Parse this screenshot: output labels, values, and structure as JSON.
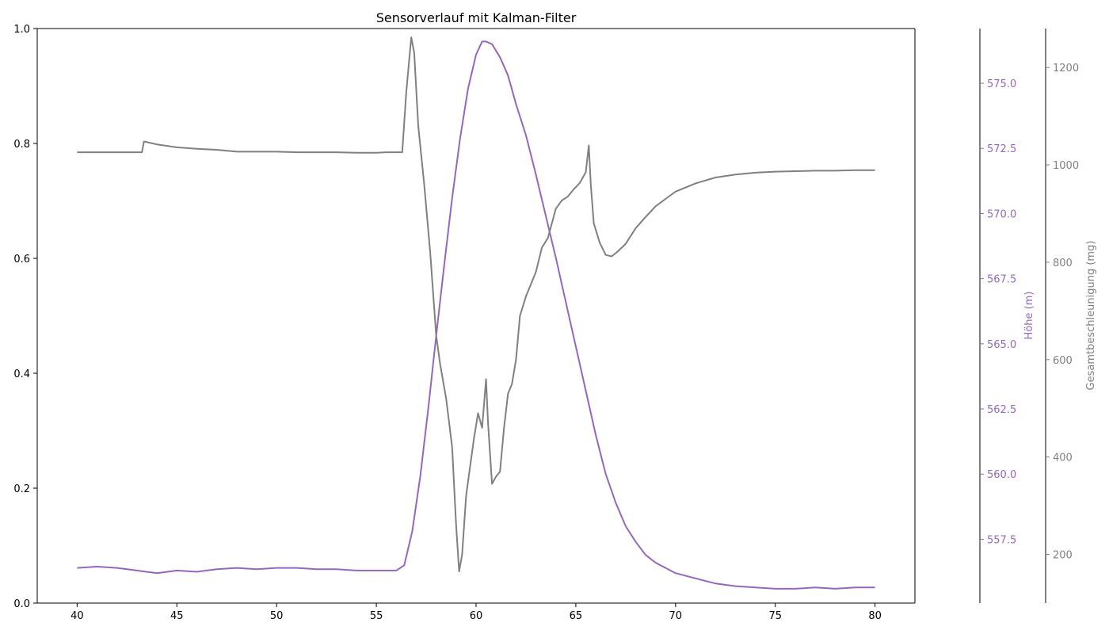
{
  "chart_data": {
    "type": "line",
    "title": "Sensorverlauf mit Kalman-Filter",
    "xlabel": "",
    "ylabel": "",
    "xlim": [
      38,
      82
    ],
    "ylim": [
      0,
      1
    ],
    "xticks": [
      "40",
      "45",
      "50",
      "55",
      "60",
      "65",
      "70",
      "75",
      "80"
    ],
    "yticks": [
      "0.0",
      "0.2",
      "0.4",
      "0.6",
      "0.8",
      "1.0"
    ],
    "grid": false,
    "legend": "none",
    "axes": [
      {
        "id": "hoehe",
        "position": "right",
        "label": "Höhe (m)",
        "color": "#9467bd",
        "ylim": [
          555.05,
          577.1
        ],
        "ticks": [
          "557.5",
          "560.0",
          "562.5",
          "565.0",
          "567.5",
          "570.0",
          "572.5",
          "575.0"
        ]
      },
      {
        "id": "beschleunigung",
        "position": "right-outer",
        "label": "Gesamtbeschleunigung (mg)",
        "color": "#808080",
        "ylim": [
          100,
          1280
        ],
        "ticks": [
          "200",
          "400",
          "600",
          "800",
          "1000",
          "1200"
        ]
      }
    ],
    "series": [
      {
        "axis": "hoehe",
        "color": "#9467bd",
        "x": [
          40,
          41,
          42,
          43,
          44,
          45,
          46,
          47,
          48,
          49,
          50,
          51,
          52,
          53,
          54,
          55,
          56,
          56.4,
          56.8,
          57.2,
          57.6,
          58,
          58.4,
          58.8,
          59.2,
          59.6,
          60,
          60.3,
          60.5,
          60.8,
          61.2,
          61.6,
          62,
          62.5,
          63,
          63.5,
          64,
          64.5,
          65,
          65.5,
          66,
          66.5,
          67,
          67.5,
          68,
          68.5,
          69,
          69.5,
          70,
          71,
          72,
          73,
          74,
          75,
          76,
          77,
          78,
          79,
          80
        ],
        "y": [
          556.4,
          556.45,
          556.4,
          556.3,
          556.2,
          556.3,
          556.25,
          556.35,
          556.4,
          556.35,
          556.4,
          556.4,
          556.35,
          556.35,
          556.3,
          556.3,
          556.3,
          556.5,
          557.8,
          559.9,
          562.5,
          565.3,
          568.0,
          570.6,
          572.9,
          574.8,
          576.1,
          576.6,
          576.6,
          576.5,
          576.0,
          575.3,
          574.2,
          573.0,
          571.5,
          569.9,
          568.3,
          566.6,
          564.9,
          563.2,
          561.5,
          560.0,
          558.9,
          558.0,
          557.4,
          556.9,
          556.6,
          556.4,
          556.2,
          556.0,
          555.8,
          555.7,
          555.65,
          555.6,
          555.6,
          555.65,
          555.6,
          555.65,
          555.65
        ]
      },
      {
        "axis": "beschleunigung",
        "color": "#808080",
        "x": [
          40,
          41,
          42,
          43,
          43.25,
          43.35,
          44,
          45,
          46,
          47,
          48,
          49,
          50,
          51,
          52,
          53,
          54,
          55,
          55.5,
          56,
          56.3,
          56.5,
          56.75,
          56.9,
          57.1,
          57.4,
          57.7,
          58,
          58.2,
          58.5,
          58.8,
          59.0,
          59.15,
          59.3,
          59.5,
          59.7,
          59.9,
          60.1,
          60.3,
          60.5,
          60.6,
          60.8,
          61.0,
          61.2,
          61.4,
          61.6,
          61.8,
          62.0,
          62.2,
          62.5,
          62.8,
          63.0,
          63.3,
          63.6,
          64.0,
          64.3,
          64.6,
          64.9,
          65.2,
          65.5,
          65.65,
          65.75,
          65.9,
          66.2,
          66.5,
          66.8,
          67.1,
          67.5,
          68,
          68.5,
          69,
          69.5,
          70,
          71,
          72,
          73,
          74,
          75,
          76,
          77,
          78,
          79,
          80
        ],
        "y": [
          1026,
          1026,
          1026,
          1026,
          1026,
          1048,
          1042,
          1036,
          1033,
          1031,
          1027,
          1027,
          1027,
          1026,
          1026,
          1026,
          1025,
          1025,
          1026,
          1026,
          1026,
          1150,
          1262,
          1230,
          1080,
          960,
          820,
          650,
          590,
          520,
          420,
          260,
          165,
          200,
          320,
          380,
          440,
          490,
          460,
          560,
          470,
          345,
          360,
          370,
          460,
          530,
          550,
          600,
          690,
          730,
          760,
          780,
          830,
          850,
          910,
          927,
          935,
          950,
          963,
          985,
          1040,
          960,
          880,
          840,
          815,
          812,
          822,
          838,
          870,
          893,
          915,
          930,
          945,
          962,
          974,
          980,
          984,
          986,
          987,
          988,
          988,
          989,
          989
        ]
      }
    ]
  }
}
